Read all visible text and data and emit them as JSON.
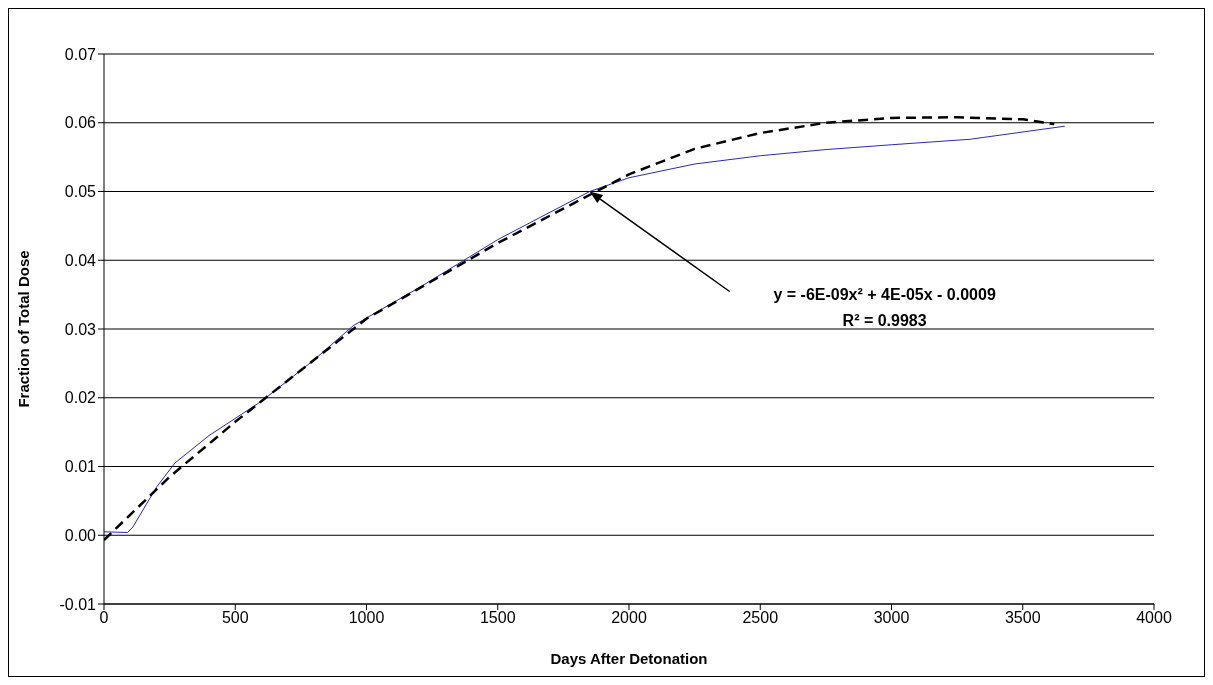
{
  "chart_data": {
    "type": "line",
    "xlabel": "Days After Detonation",
    "ylabel": "Fraction of Total Dose",
    "xlim": [
      0,
      4000
    ],
    "xticks": [
      0,
      500,
      1000,
      1500,
      2000,
      2500,
      3000,
      3500,
      4000
    ],
    "ylim": [
      -0.01,
      0.07
    ],
    "yticks": [
      -0.01,
      {
        "value": 0,
        "label": "0.00"
      },
      0.01,
      0.02,
      0.03,
      0.04,
      0.05,
      0.06,
      0.07
    ],
    "grid": "y",
    "marker": "none",
    "series": [
      {
        "color": "#2a2ab8",
        "line_style": "solid",
        "x": [
          0,
          90,
          110,
          200,
          270,
          400,
          600,
          800,
          950,
          1200,
          1500,
          1850,
          2000,
          2250,
          2500,
          2750,
          3000,
          3300,
          3660
        ],
        "values": [
          0.0005,
          0.0004,
          0.0012,
          0.007,
          0.0105,
          0.0145,
          0.0195,
          0.0255,
          0.0305,
          0.036,
          0.043,
          0.05,
          0.052,
          0.054,
          0.0552,
          0.0561,
          0.0568,
          0.0576,
          0.0595
        ]
      },
      {
        "color": "#000000",
        "line_style": "dashed",
        "x": [
          0,
          250,
          500,
          750,
          1000,
          1250,
          1500,
          1750,
          2000,
          2250,
          2500,
          2750,
          3000,
          3250,
          3500,
          3620
        ],
        "values": [
          -0.0007,
          0.0085,
          0.0165,
          0.024,
          0.0315,
          0.037,
          0.0425,
          0.0475,
          0.0525,
          0.0562,
          0.0585,
          0.06,
          0.0607,
          0.0608,
          0.0605,
          0.0598
        ]
      }
    ],
    "annotations": [
      "y = -6E-09x² + 4E-05x - 0.0009",
      "R² = 0.9983"
    ]
  }
}
